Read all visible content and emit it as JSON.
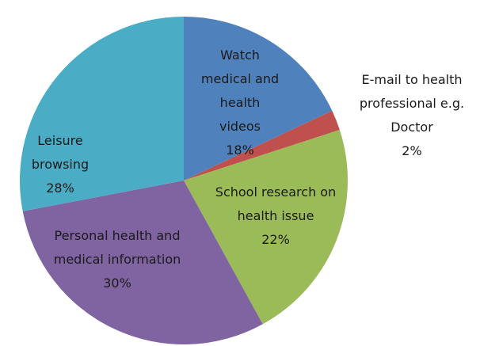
{
  "chart_data": {
    "type": "pie",
    "categories": [
      "Watch medical and health videos",
      "E-mail to health professional e.g. Doctor",
      "School research on health issue",
      "Personal health and medical information",
      "Leisure browsing"
    ],
    "values": [
      18,
      2,
      22,
      30,
      28
    ],
    "value_labels": [
      "18%",
      "2%",
      "22%",
      "30%",
      "28%"
    ],
    "colors": [
      "#4f81bd",
      "#c0504d",
      "#9bbb59",
      "#8064a2",
      "#4bacc6"
    ]
  }
}
